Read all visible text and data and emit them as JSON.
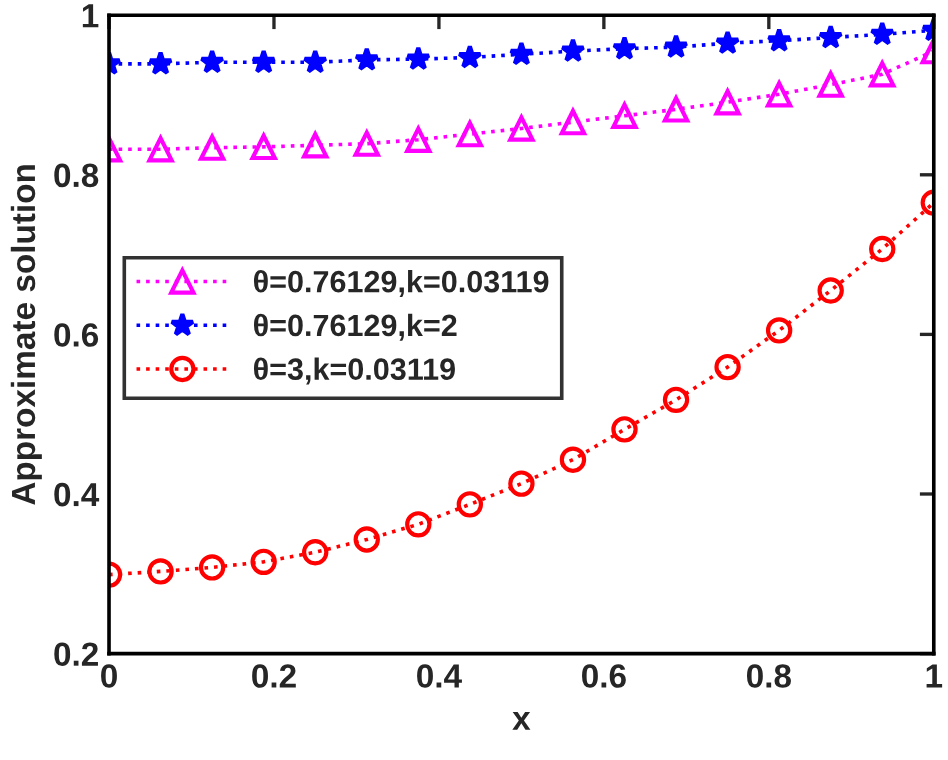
{
  "chart_data": {
    "type": "line",
    "xlabel": "x",
    "ylabel": "Approximate solution",
    "x": [
      0,
      0.0625,
      0.125,
      0.1875,
      0.25,
      0.3125,
      0.375,
      0.4375,
      0.5,
      0.5625,
      0.625,
      0.6875,
      0.75,
      0.8125,
      0.875,
      0.9375,
      1
    ],
    "series": [
      {
        "name": "θ=0.76129,k=0.03119",
        "color": "#ff00ff",
        "marker": "triangle",
        "values": [
          0.832,
          0.832,
          0.834,
          0.835,
          0.837,
          0.839,
          0.844,
          0.851,
          0.858,
          0.866,
          0.874,
          0.882,
          0.891,
          0.901,
          0.913,
          0.926,
          0.955
        ]
      },
      {
        "name": "θ=0.76129,k=2",
        "color": "#0000ff",
        "marker": "star",
        "values": [
          0.939,
          0.939,
          0.941,
          0.941,
          0.941,
          0.944,
          0.945,
          0.947,
          0.951,
          0.955,
          0.958,
          0.96,
          0.965,
          0.968,
          0.972,
          0.976,
          0.981
        ]
      },
      {
        "name": "θ=3,k=0.03119",
        "color": "#ff0000",
        "marker": "circle",
        "values": [
          0.299,
          0.303,
          0.308,
          0.315,
          0.327,
          0.343,
          0.362,
          0.387,
          0.413,
          0.443,
          0.481,
          0.518,
          0.559,
          0.605,
          0.655,
          0.707,
          0.765
        ]
      }
    ],
    "line_style": "dotted",
    "xlim": [
      0,
      1
    ],
    "ylim": [
      0.2,
      1
    ],
    "xticks": [
      0,
      0.2,
      0.4,
      0.6,
      0.8,
      1
    ],
    "yticks": [
      0.2,
      0.4,
      0.6,
      0.8,
      1
    ],
    "grid": false,
    "legend": "left"
  }
}
